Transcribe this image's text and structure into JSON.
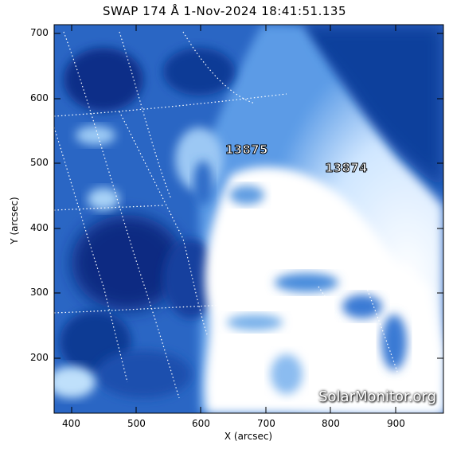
{
  "title": "SWAP 174 Å  1-Nov-2024 18:41:51.135",
  "x_axis": {
    "label": "X (arcsec)",
    "ticks": [
      "400",
      "500",
      "600",
      "700",
      "800",
      "900"
    ]
  },
  "y_axis": {
    "label": "Y (arcsec)",
    "ticks": [
      "700",
      "600",
      "500",
      "400",
      "300",
      "200"
    ]
  },
  "active_regions": [
    {
      "id": "13875"
    },
    {
      "id": "13874"
    }
  ],
  "watermark": "SolarMonitor.org",
  "colors": {
    "frame": "#000000",
    "plasma_dark": "#0a2f86",
    "plasma_mid": "#3e82d8",
    "plasma_bright": "#ffffff"
  }
}
